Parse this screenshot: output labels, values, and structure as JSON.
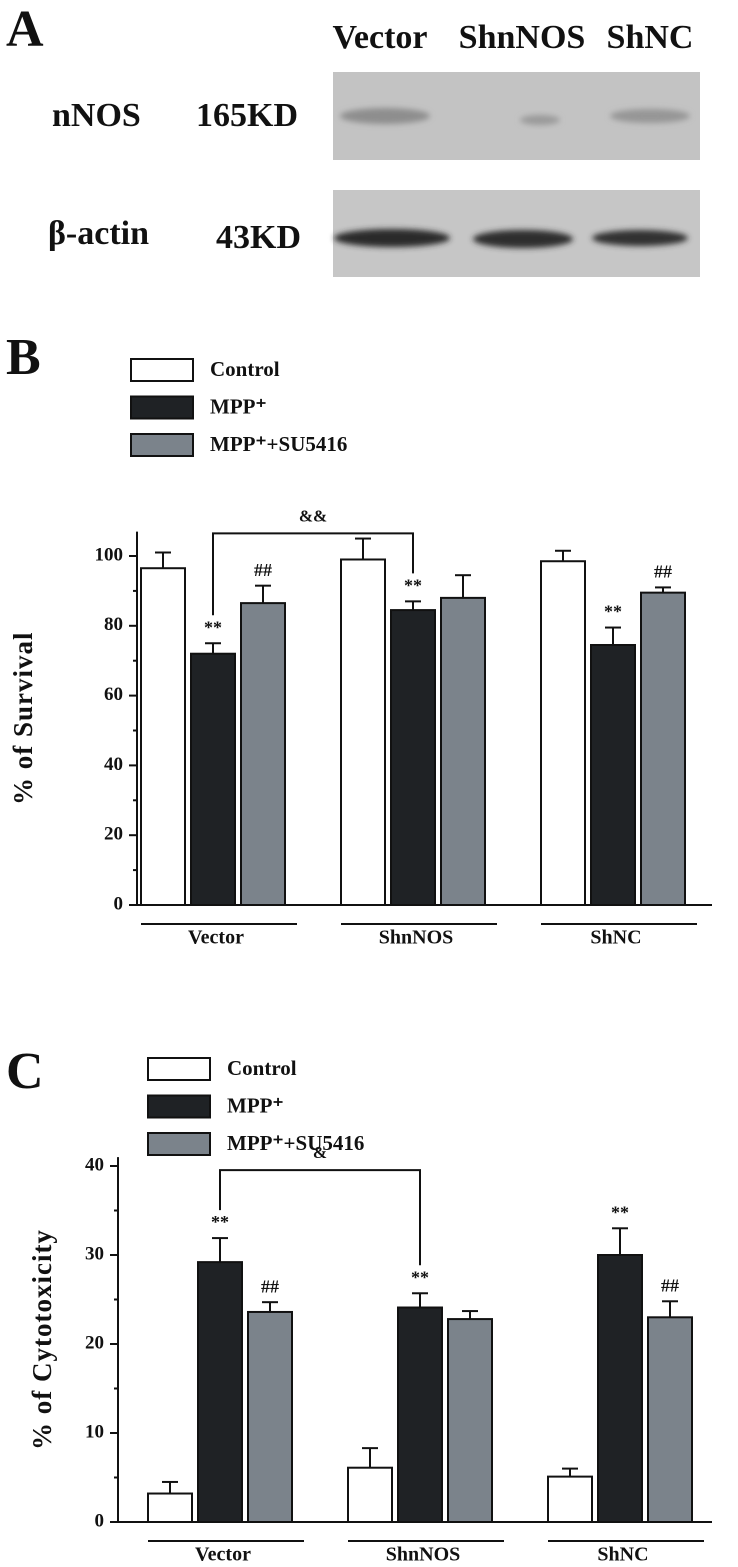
{
  "blot": {
    "panel": "A",
    "columns": [
      "Vector",
      "ShnNOS",
      "ShNC"
    ],
    "rows": [
      {
        "protein": "nNOS",
        "size": "165KD"
      },
      {
        "protein": "β-actin",
        "size": "43KD"
      }
    ]
  },
  "chart_data": [
    {
      "type": "bar",
      "panel": "B",
      "y_label": "% of Survival",
      "categories": [
        "Vector",
        "ShnNOS",
        "ShNC"
      ],
      "series": [
        {
          "name": "Control",
          "color": "#ffffff",
          "values": [
            96.5,
            99,
            98.5
          ],
          "errors": [
            4.5,
            6,
            3
          ],
          "annotations": [
            null,
            null,
            null
          ]
        },
        {
          "name": "MPP⁺",
          "color": "#1f2225",
          "values": [
            72,
            84.5,
            74.5
          ],
          "errors": [
            3,
            2.5,
            5
          ],
          "annotations": [
            "**",
            "**",
            "**"
          ]
        },
        {
          "name": "MPP⁺+SU5416",
          "color": "#7b838b",
          "values": [
            86.5,
            88,
            89.5
          ],
          "errors": [
            5,
            6.5,
            1.5
          ],
          "annotations": [
            "##",
            null,
            "##"
          ]
        }
      ],
      "bracket_label": "&&",
      "ylim": [
        0,
        107
      ],
      "yticks": [
        0,
        20,
        40,
        60,
        80,
        100
      ],
      "minor_yticks": [
        10,
        30,
        50,
        70,
        90
      ]
    },
    {
      "type": "bar",
      "panel": "C",
      "y_label": "% of Cytotoxicity",
      "categories": [
        "Vector",
        "ShnNOS",
        "ShNC"
      ],
      "series": [
        {
          "name": "Control",
          "color": "#ffffff",
          "values": [
            3.2,
            6.1,
            5.1
          ],
          "errors": [
            1.3,
            2.2,
            0.9
          ],
          "annotations": [
            null,
            null,
            null
          ]
        },
        {
          "name": "MPP⁺",
          "color": "#1f2225",
          "values": [
            29.2,
            24.1,
            30
          ],
          "errors": [
            2.7,
            1.6,
            3
          ],
          "annotations": [
            "**",
            "**",
            "**"
          ]
        },
        {
          "name": "MPP⁺+SU5416",
          "color": "#7b838b",
          "values": [
            23.6,
            22.8,
            23
          ],
          "errors": [
            1.1,
            0.9,
            1.8
          ],
          "annotations": [
            "##",
            null,
            "##"
          ]
        }
      ],
      "bracket_label": "&",
      "ylim": [
        0,
        41
      ],
      "yticks": [
        0,
        10,
        20,
        30,
        40
      ],
      "minor_yticks": [
        5,
        15,
        25,
        35
      ]
    }
  ]
}
